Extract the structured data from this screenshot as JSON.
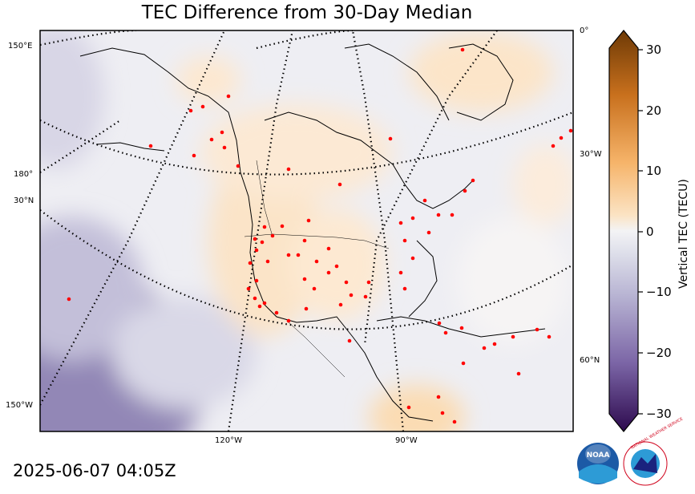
{
  "title": "TEC Difference from 30-Day Median",
  "timestamp": "2025-06-07 04:05Z",
  "colorbar": {
    "label": "Vertical TEC (TECU)",
    "ticks": [
      "30",
      "20",
      "10",
      "0",
      "−10",
      "−20",
      "−30"
    ],
    "range": [
      -30,
      30
    ],
    "colors": {
      "high": "#7a3f0a",
      "mid_high": "#f4a950",
      "zero": "#f3f3f5",
      "mid_low": "#a9a2c8",
      "low": "#2d0a4e"
    }
  },
  "graticule_labels": {
    "left": [
      "150°E",
      "180°",
      "30°N",
      "150°W"
    ],
    "right": [
      "0°",
      "30°W",
      "60°N"
    ],
    "bottom": [
      "120°W",
      "90°W"
    ]
  },
  "logos": {
    "noaa": "NOAA",
    "nws": "NATIONAL WEATHER SERVICE"
  }
}
